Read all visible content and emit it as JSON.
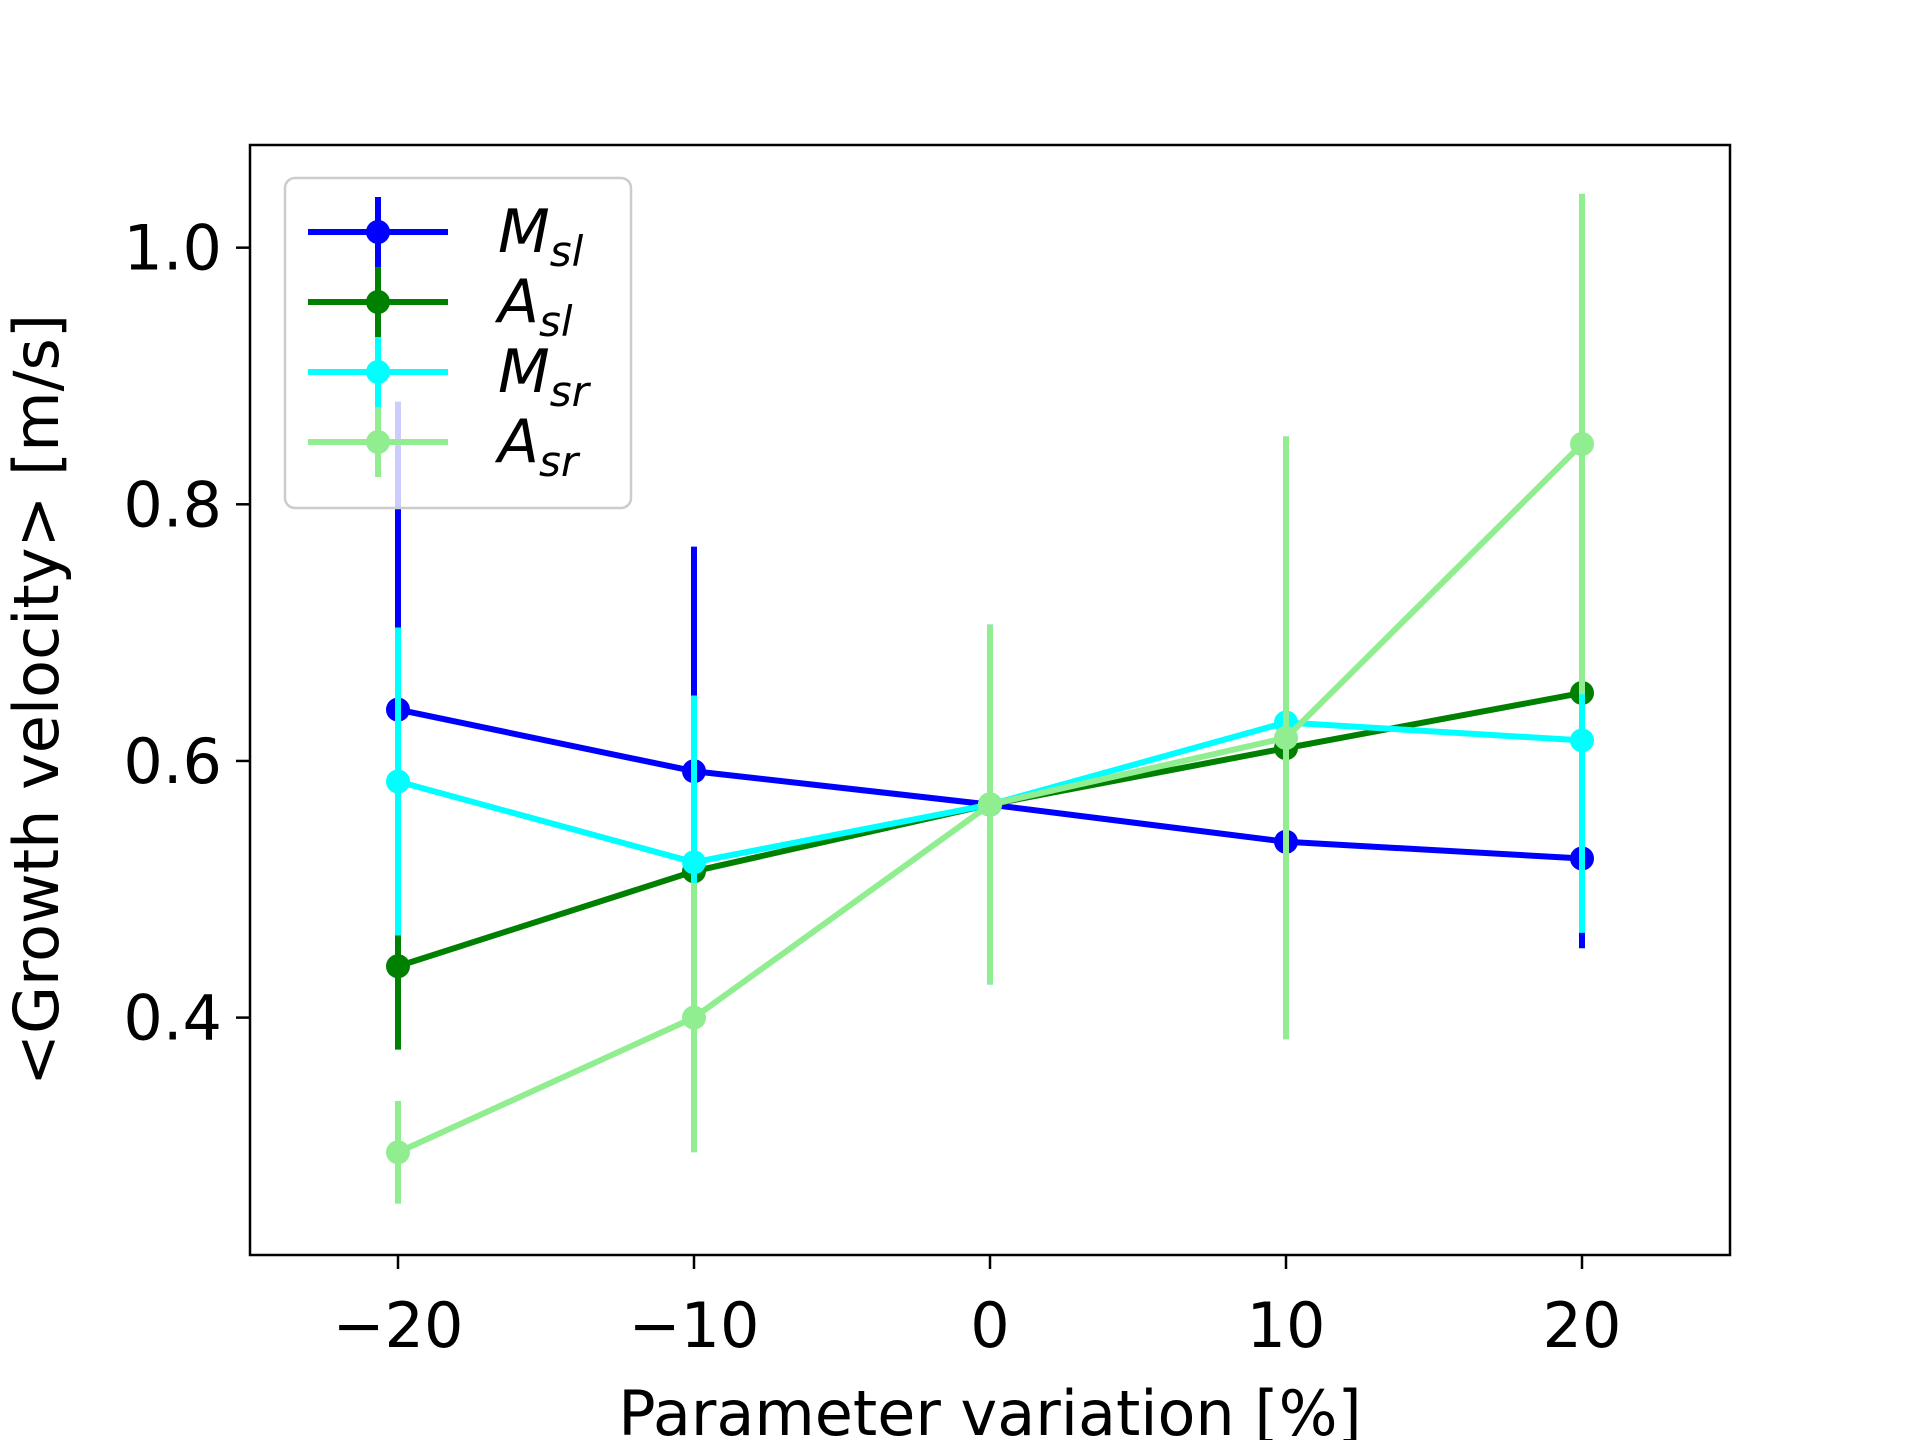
{
  "chart_data": {
    "type": "line",
    "title": "",
    "xlabel": "Parameter variation [%]",
    "ylabel": "<Growth velocity> [m/s]",
    "x": [
      -20,
      -10,
      0,
      10,
      20
    ],
    "xlim": [
      -25,
      25
    ],
    "ylim": [
      0.215,
      1.08
    ],
    "xticks": [
      -20,
      -10,
      0,
      10,
      20
    ],
    "xtick_labels": [
      "−20",
      "−10",
      "0",
      "10",
      "20"
    ],
    "yticks": [
      0.4,
      0.6,
      0.8,
      1.0
    ],
    "ytick_labels": [
      "0.4",
      "0.6",
      "0.8",
      "1.0"
    ],
    "grid": false,
    "legend_position": "top-left",
    "series": [
      {
        "name": "Msl",
        "base": "M",
        "sub": "sl",
        "color": "#0000ff",
        "values": [
          0.64,
          0.592,
          0.566,
          0.537,
          0.524
        ],
        "errors": [
          0.24,
          0.175,
          0.14,
          0.065,
          0.07
        ]
      },
      {
        "name": "Asl",
        "base": "A",
        "sub": "sl",
        "color": "#008000",
        "values": [
          0.44,
          0.514,
          0.566,
          0.61,
          0.653
        ],
        "errors": [
          0.065,
          0.075,
          0.14,
          0.095,
          0.115
        ]
      },
      {
        "name": "Msr",
        "base": "M",
        "sub": "sr",
        "color": "#00ffff",
        "values": [
          0.584,
          0.521,
          0.566,
          0.63,
          0.616
        ],
        "errors": [
          0.12,
          0.13,
          0.14,
          0.085,
          0.15
        ]
      },
      {
        "name": "Asr",
        "base": "A",
        "sub": "sr",
        "color": "#90ee90",
        "values": [
          0.295,
          0.4,
          0.566,
          0.618,
          0.847
        ],
        "errors": [
          0.04,
          0.105,
          0.14,
          0.235,
          0.195
        ]
      }
    ]
  }
}
